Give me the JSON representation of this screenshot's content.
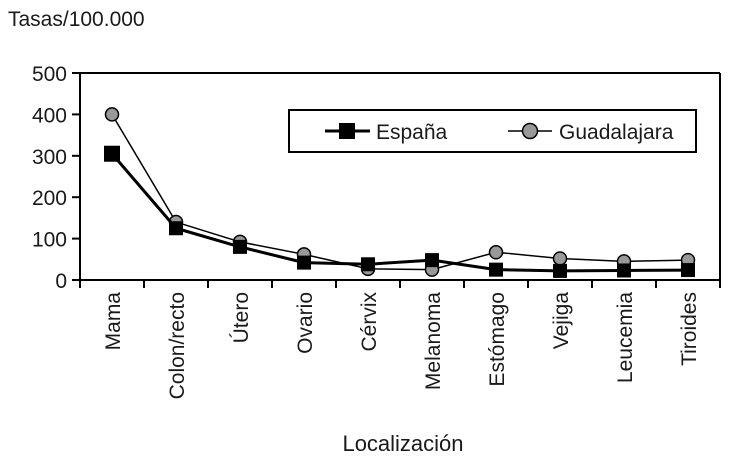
{
  "chart_data": {
    "type": "line",
    "ylabel": "Tasas/100.000",
    "xlabel": "Localización",
    "ylim": [
      0,
      500
    ],
    "yticks": [
      "0",
      "100",
      "200",
      "300",
      "400",
      "500"
    ],
    "grid": false,
    "legend_position": "top-right",
    "categories": [
      "Mama",
      "Colon/recto",
      "Útero",
      "Ovario",
      "Cérvix",
      "Melanoma",
      "Estómago",
      "Vejiga",
      "Leucemia",
      "Tiroides"
    ],
    "series": [
      {
        "name": "España",
        "marker": "square",
        "color": "#000000",
        "values": [
          305,
          125,
          80,
          42,
          38,
          48,
          25,
          22,
          23,
          24
        ]
      },
      {
        "name": "Guadalajara",
        "marker": "circle",
        "color": "#999999",
        "values": [
          400,
          140,
          92,
          62,
          27,
          25,
          67,
          52,
          45,
          48
        ]
      }
    ]
  }
}
